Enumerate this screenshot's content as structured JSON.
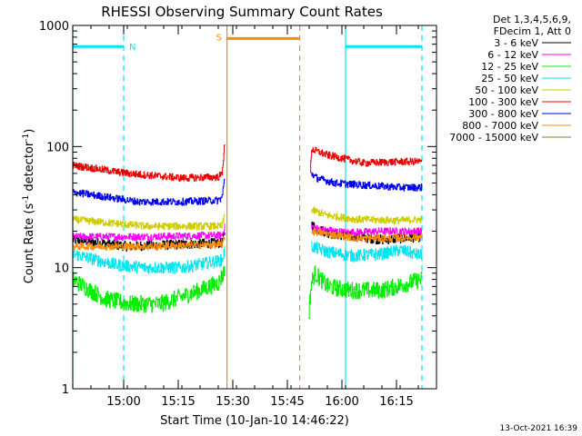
{
  "chart_data": {
    "type": "line",
    "title": "RHESSI Observing Summary Count Rates",
    "xlabel": "Start Time (10-Jan-10 14:46:22)",
    "ylabel_main": "Count Rate (s",
    "ylabel_sup1": "-1",
    "ylabel_mid": " detector",
    "ylabel_sup2": "-1",
    "ylabel_end": ")",
    "ylabel": "Count Rate (s-1 detector-1)",
    "yscale": "log",
    "ylim": [
      1,
      1000
    ],
    "xlim_minutes": [
      0,
      100
    ],
    "y_ticks": [
      {
        "value": 1,
        "label": "1"
      },
      {
        "value": 10,
        "label": "10"
      },
      {
        "value": 100,
        "label": "100"
      },
      {
        "value": 1000,
        "label": "1000"
      }
    ],
    "x_ticks": [
      {
        "minute": 14,
        "label": "15:00"
      },
      {
        "minute": 29,
        "label": "15:15"
      },
      {
        "minute": 44,
        "label": "15:30"
      },
      {
        "minute": 59,
        "label": "15:45"
      },
      {
        "minute": 74,
        "label": "16:00"
      },
      {
        "minute": 89,
        "label": "16:15"
      }
    ],
    "legend_header": [
      "Det 1,3,4,5,6,9,",
      "FDecim 1, Att 0"
    ],
    "legend_placement": "right-outside-top",
    "grid": false,
    "series": [
      {
        "name": "3 - 6 keV",
        "color": "#000000",
        "segments": [
          {
            "points": [
              [
                0,
                17
              ],
              [
                15,
                15
              ],
              [
                41,
                16
              ],
              [
                41.8,
                19
              ]
            ]
          },
          {
            "points": [
              [
                65.6,
                23
              ],
              [
                66.8,
                21
              ],
              [
                71,
                19
              ],
              [
                78,
                18
              ],
              [
                85,
                17
              ],
              [
                96,
                18
              ]
            ]
          }
        ]
      },
      {
        "name": "6 - 12 keV",
        "color": "#ff00ff",
        "segments": [
          {
            "points": [
              [
                0,
                18
              ],
              [
                20,
                18
              ],
              [
                41,
                18.5
              ],
              [
                41.8,
                22
              ]
            ]
          },
          {
            "points": [
              [
                65.6,
                22
              ],
              [
                67,
                21
              ],
              [
                75,
                19.5
              ],
              [
                85,
                20
              ],
              [
                96,
                20
              ]
            ]
          }
        ]
      },
      {
        "name": "12 - 25 keV",
        "color": "#00ee00",
        "segments": [
          {
            "points": [
              [
                0,
                8
              ],
              [
                3,
                7
              ],
              [
                9,
                5.5
              ],
              [
                16,
                5
              ],
              [
                24,
                5
              ],
              [
                35,
                6.5
              ],
              [
                40,
                7.5
              ],
              [
                41.8,
                9.5
              ]
            ]
          },
          {
            "points": [
              [
                64.8,
                4
              ],
              [
                65.6,
                7.5
              ],
              [
                66.5,
                9
              ],
              [
                70,
                7
              ],
              [
                76,
                6.5
              ],
              [
                85,
                6.5
              ],
              [
                96,
                8
              ]
            ]
          }
        ]
      },
      {
        "name": "25 - 50 keV",
        "color": "#00e5ee",
        "segments": [
          {
            "points": [
              [
                0,
                13
              ],
              [
                12,
                10.5
              ],
              [
                20,
                10
              ],
              [
                30,
                10
              ],
              [
                41,
                11.5
              ],
              [
                41.8,
                14
              ]
            ]
          },
          {
            "points": [
              [
                65.6,
                15
              ],
              [
                70,
                13.5
              ],
              [
                77,
                12.5
              ],
              [
                85,
                13
              ],
              [
                90,
                14
              ],
              [
                96,
                12.5
              ]
            ]
          }
        ]
      },
      {
        "name": "50 - 100 keV",
        "color": "#cccc00",
        "segments": [
          {
            "points": [
              [
                0,
                25
              ],
              [
                20,
                22
              ],
              [
                41,
                22
              ],
              [
                41.8,
                28
              ]
            ]
          },
          {
            "points": [
              [
                65.6,
                30
              ],
              [
                70,
                27
              ],
              [
                78,
                25
              ],
              [
                90,
                24.5
              ],
              [
                96,
                25
              ]
            ]
          }
        ]
      },
      {
        "name": "100 - 300 keV",
        "color": "#ee0000",
        "segments": [
          {
            "points": [
              [
                0,
                70
              ],
              [
                15,
                60
              ],
              [
                30,
                55
              ],
              [
                40,
                56
              ],
              [
                41,
                60
              ],
              [
                41.8,
                108
              ]
            ]
          },
          {
            "points": [
              [
                65.3,
                60
              ],
              [
                65.6,
                95
              ],
              [
                70,
                85
              ],
              [
                80,
                73
              ],
              [
                90,
                75
              ],
              [
                96,
                75
              ]
            ]
          }
        ]
      },
      {
        "name": "300 - 800 keV",
        "color": "#0000ee",
        "segments": [
          {
            "points": [
              [
                0,
                42
              ],
              [
                10,
                38
              ],
              [
                18,
                35
              ],
              [
                30,
                35
              ],
              [
                40,
                36
              ],
              [
                41,
                38
              ],
              [
                41.8,
                56
              ]
            ]
          },
          {
            "points": [
              [
                65.6,
                60
              ],
              [
                67,
                55
              ],
              [
                72,
                50
              ],
              [
                80,
                48
              ],
              [
                90,
                46
              ],
              [
                96,
                46
              ]
            ]
          }
        ]
      },
      {
        "name": "800 - 7000 keV",
        "color": "#ff8c00",
        "segments": [
          {
            "points": [
              [
                0,
                15
              ],
              [
                20,
                15
              ],
              [
                41,
                15.5
              ],
              [
                41.8,
                18
              ]
            ]
          },
          {
            "points": [
              [
                65.6,
                20
              ],
              [
                70,
                19
              ],
              [
                78,
                17.5
              ],
              [
                90,
                17.5
              ],
              [
                96,
                18
              ]
            ]
          }
        ]
      },
      {
        "name": "7000 - 15000 keV",
        "color": "#6b8e23",
        "segments": []
      }
    ],
    "markers": {
      "night": {
        "label": "N",
        "color": "#00e5ee",
        "level": 670,
        "bars": [
          [
            0,
            14
          ],
          [
            75,
            96
          ]
        ],
        "dashed_lines": [
          14,
          96
        ],
        "solid_lines": [
          0,
          75
        ]
      },
      "saa": {
        "label": "S",
        "color": "#ff8c00",
        "level": 780,
        "bars": [
          [
            42.4,
            62.4
          ]
        ],
        "solid_lines": [
          42.4
        ],
        "dashed_lines": [
          62.4
        ]
      }
    },
    "footer": "13-Oct-2021 16:39"
  }
}
